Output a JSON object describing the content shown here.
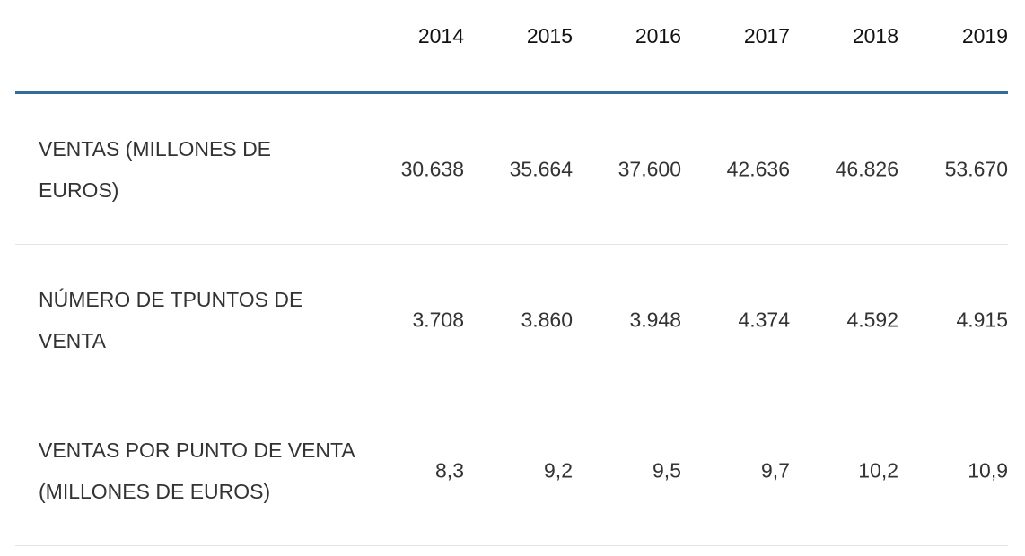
{
  "table": {
    "years": [
      "2014",
      "2015",
      "2016",
      "2017",
      "2018",
      "2019"
    ],
    "rows": [
      {
        "label": "VENTAS (MILLONES DE EUROS)",
        "values": [
          "30.638",
          "35.664",
          "37.600",
          "42.636",
          "46.826",
          "53.670"
        ]
      },
      {
        "label": "NÚMERO DE TPUNTOS DE VENTA",
        "values": [
          "3.708",
          "3.860",
          "3.948",
          "4.374",
          "4.592",
          "4.915"
        ]
      },
      {
        "label": "VENTAS POR PUNTO DE VENTA (MILLONES DE EUROS)",
        "values": [
          "8,3",
          "9,2",
          "9,5",
          "9,7",
          "10,2",
          "10,9"
        ]
      }
    ]
  },
  "colors": {
    "header_rule": "#336c96",
    "row_divider": "#e3e3e3"
  }
}
